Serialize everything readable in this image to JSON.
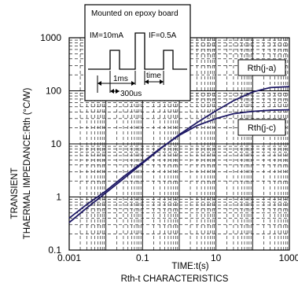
{
  "chart_data": {
    "type": "line",
    "title": "Rth-t CHARACTERISTICS",
    "xlabel": "TIME:t(s)",
    "ylabel_line1": "TRANSIENT",
    "ylabel_line2": "THAERMAL IMPEDANCE:Rth (°C/W)",
    "x_scale": "log",
    "y_scale": "log",
    "xlim": [
      0.001,
      1000
    ],
    "ylim": [
      0.1,
      1000
    ],
    "x_ticks": [
      "0.001",
      "0.1",
      "10",
      "1000"
    ],
    "y_ticks": [
      "1000",
      "100",
      "10",
      "1",
      "0.1"
    ],
    "grid": true,
    "series": [
      {
        "name": "Rth(j-a)",
        "x": [
          0.001,
          0.003,
          0.01,
          0.03,
          0.1,
          0.3,
          1,
          3,
          10,
          30,
          100,
          300,
          1000
        ],
        "y": [
          0.33,
          0.62,
          1.2,
          2.2,
          4.3,
          8.0,
          15,
          25,
          42,
          65,
          95,
          115,
          120
        ]
      },
      {
        "name": "Rth(j-c)",
        "x": [
          0.001,
          0.003,
          0.01,
          0.03,
          0.1,
          0.3,
          1,
          3,
          10,
          30,
          100,
          300,
          1000
        ],
        "y": [
          0.4,
          0.72,
          1.3,
          2.4,
          4.5,
          8.2,
          14.5,
          22,
          30,
          37,
          41,
          43,
          44
        ]
      }
    ],
    "inset": {
      "title": "Mounted on epoxy board",
      "im_label": "IM=10mA",
      "if_label": "IF=0.5A",
      "ms_label": "1ms",
      "time_label": "time",
      "us_label": "300us"
    },
    "colors": {
      "curve": "#1f1a66",
      "grid": "#000000"
    }
  }
}
